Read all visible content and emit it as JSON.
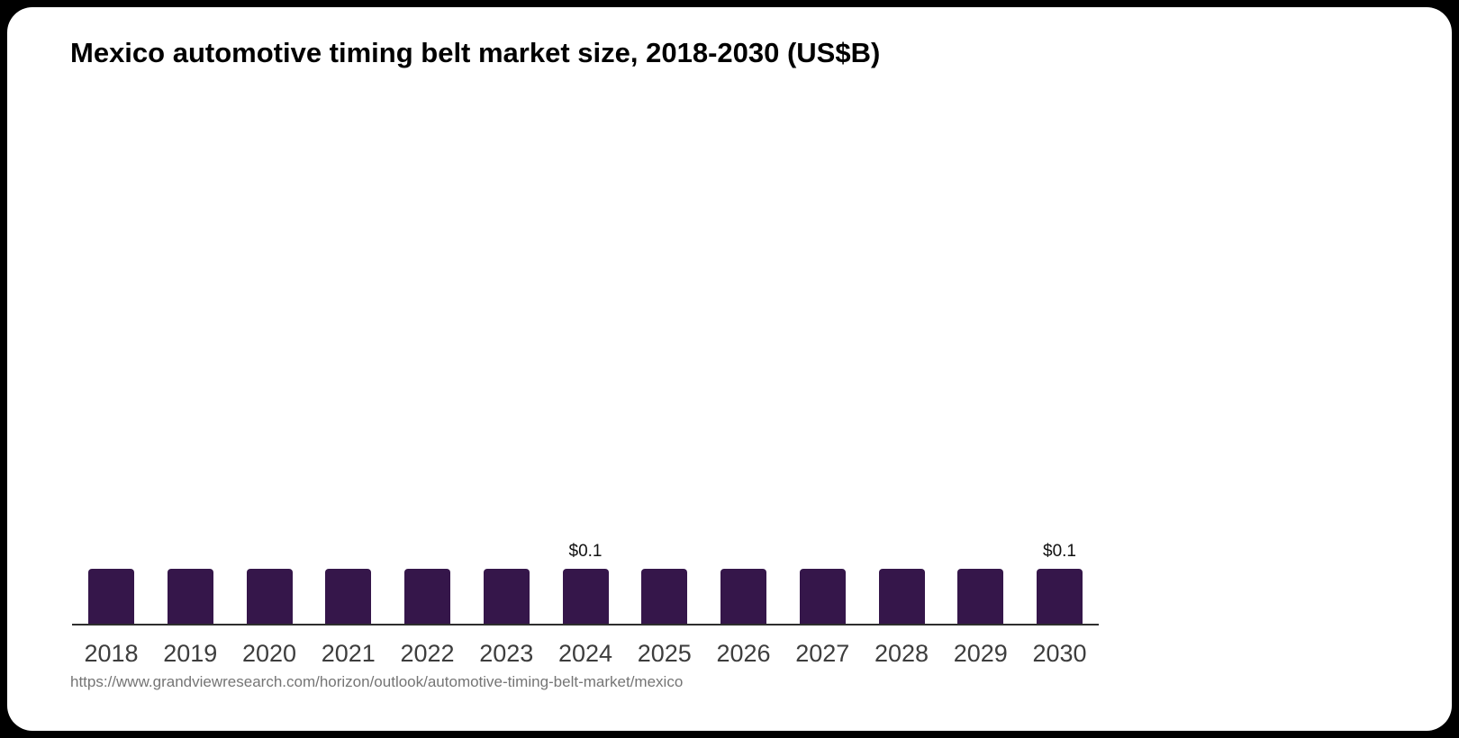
{
  "title": "Mexico automotive timing belt market size, 2018-2030 (US$B)",
  "source_url": "https://www.grandviewresearch.com/horizon/outlook/automotive-timing-belt-market/mexico",
  "colors": {
    "page_background": "#000000",
    "card_background": "#ffffff",
    "bar_color": "#35164A",
    "axis_line_color": "#2e2e2e",
    "year_label_color": "#3d3d3d",
    "value_label_color": "#111111",
    "title_color": "#000000",
    "source_color": "#757575"
  },
  "chart_data": {
    "type": "bar",
    "title": "Mexico automotive timing belt market size, 2018-2030 (US$B)",
    "categories": [
      "2018",
      "2019",
      "2020",
      "2021",
      "2022",
      "2023",
      "2024",
      "2025",
      "2026",
      "2027",
      "2028",
      "2029",
      "2030"
    ],
    "values": [
      0.1,
      0.1,
      0.1,
      0.1,
      0.1,
      0.1,
      0.1,
      0.1,
      0.1,
      0.1,
      0.1,
      0.1,
      0.1
    ],
    "value_labels": [
      "",
      "",
      "",
      "",
      "",
      "",
      "$0.1",
      "",
      "",
      "",
      "",
      "",
      "$0.1"
    ],
    "xlabel": "",
    "ylabel": "",
    "ylim": [
      0,
      0.1
    ],
    "grid": false,
    "legend": false,
    "y_axis_shown": false,
    "bar_color": "#35164A"
  }
}
